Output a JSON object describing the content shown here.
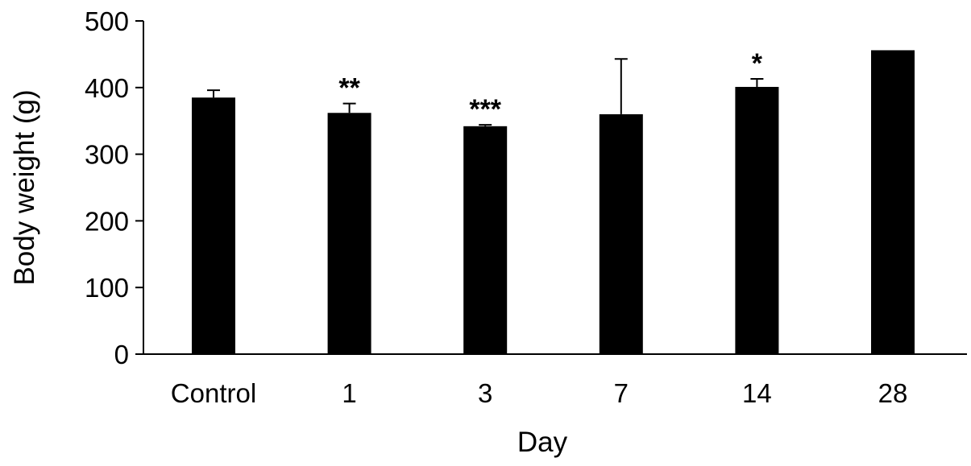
{
  "chart_data": {
    "type": "bar",
    "title": "",
    "xlabel": "Day",
    "ylabel": "Body weight (g)",
    "categories": [
      "Control",
      "1",
      "3",
      "7",
      "14",
      "28"
    ],
    "values": [
      385,
      362,
      342,
      360,
      401,
      456
    ],
    "error_upper": [
      396,
      376,
      344,
      443,
      413,
      456
    ],
    "significance": [
      "",
      "**",
      "***",
      "",
      "*",
      ""
    ],
    "yticks": [
      0,
      100,
      200,
      300,
      400,
      500
    ],
    "ylim": [
      0,
      500
    ],
    "grid": false,
    "legend": "none",
    "bar_color": "#000000"
  }
}
